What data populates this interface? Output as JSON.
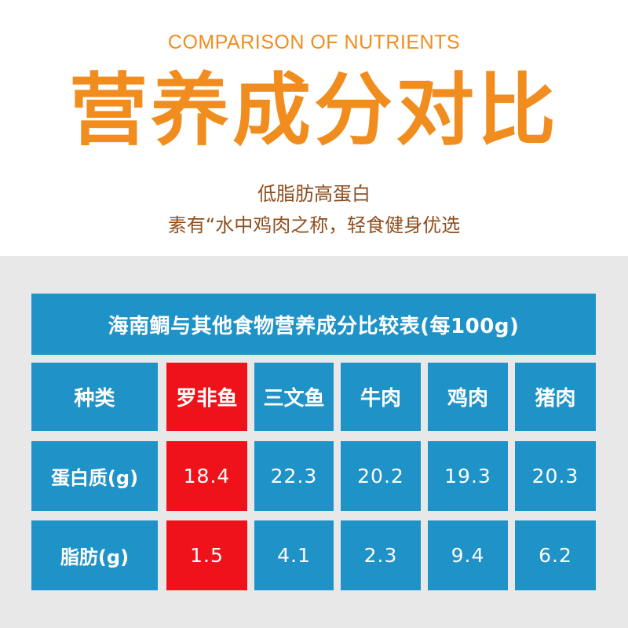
{
  "header": {
    "en_title": "COMPARISON OF NUTRIENTS",
    "cn_title": "营养成分对比",
    "subtitle_1": "低脂肪高蛋白",
    "subtitle_2": "素有“水中鸡肉之称，轻食健身优选"
  },
  "table": {
    "title": "海南鲷与其他食物营养成分比较表(每100g)",
    "header_label": "种类",
    "columns": [
      "罗非鱼",
      "三文鱼",
      "牛肉",
      "鸡肉",
      "猪肉"
    ],
    "rows": [
      {
        "label": "蛋白质(g)",
        "values": [
          "18.4",
          "22.3",
          "20.2",
          "19.3",
          "20.3"
        ]
      },
      {
        "label": "脂肪(g)",
        "values": [
          "1.5",
          "4.1",
          "2.3",
          "9.4",
          "6.2"
        ]
      }
    ]
  },
  "colors": {
    "accent_orange": "#f18d1f",
    "subtitle_brown": "#8e4f1e",
    "table_blue": "#1f93c8",
    "highlight_red": "#f0121a",
    "background_grey": "#e8e8e9"
  }
}
